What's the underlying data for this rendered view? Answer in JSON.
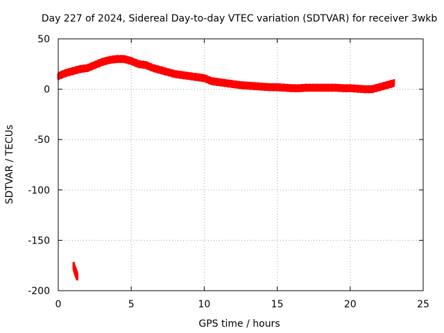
{
  "chart_data": {
    "type": "scatter",
    "title": "Day 227 of 2024, Sidereal Day-to-day VTEC variation (SDTVAR) for receiver 3wkb",
    "xlabel": "GPS time / hours",
    "ylabel": "SDTVAR / TECUs",
    "xlim": [
      0,
      25
    ],
    "ylim": [
      -200,
      50
    ],
    "xticks": [
      0,
      5,
      10,
      15,
      20,
      25
    ],
    "xtick_labels": [
      "0",
      "5",
      "10",
      "15",
      "20",
      "25"
    ],
    "yticks": [
      -200,
      -150,
      -100,
      -50,
      0,
      50
    ],
    "ytick_labels": [
      "-200",
      "-150",
      "-100",
      "-50",
      "0",
      "50"
    ],
    "grid": true,
    "series": [
      {
        "name": "SDTVAR main",
        "color": "#ff0000",
        "x": [
          0.0,
          0.5,
          1.0,
          1.5,
          2.0,
          2.5,
          3.0,
          3.5,
          4.0,
          4.5,
          5.0,
          5.5,
          6.0,
          6.5,
          7.0,
          7.5,
          8.0,
          8.5,
          9.0,
          9.5,
          10.0,
          10.5,
          11.0,
          11.5,
          12.0,
          12.5,
          13.0,
          13.5,
          14.0,
          14.5,
          15.0,
          15.5,
          16.0,
          16.5,
          17.0,
          17.5,
          18.0,
          18.5,
          19.0,
          19.5,
          20.0,
          20.5,
          21.0,
          21.5,
          22.0,
          22.5,
          23.0
        ],
        "y": [
          13,
          16,
          18,
          20,
          21,
          24,
          27,
          29,
          30,
          30,
          28,
          25,
          24,
          21,
          19,
          17,
          15,
          14,
          13,
          12,
          11,
          8,
          7,
          6,
          5,
          4,
          3.5,
          3,
          2.5,
          2,
          2,
          1.5,
          1,
          1,
          1.5,
          1.5,
          1.5,
          1.5,
          1.5,
          1,
          1,
          0.5,
          0,
          0,
          2,
          4,
          6
        ]
      },
      {
        "name": "SDTVAR outlier",
        "color": "#ff0000",
        "x": [
          1.05,
          1.1,
          1.15,
          1.2,
          1.25,
          1.3
        ],
        "y": [
          -175,
          -178,
          -180,
          -182,
          -184,
          -186
        ]
      }
    ]
  }
}
